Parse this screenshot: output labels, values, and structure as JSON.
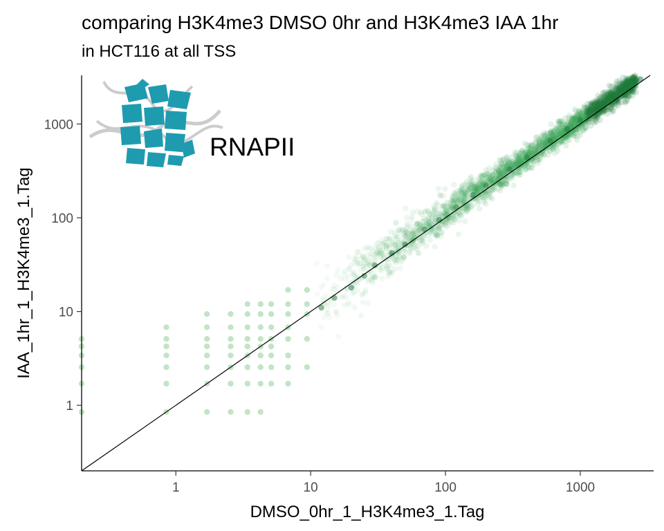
{
  "chart_data": {
    "type": "scatter",
    "title": "comparing H3K4me3 DMSO 0hr and H3K4me3 IAA 1hr",
    "subtitle": "in HCT116 at all TSS",
    "xlabel": "DMSO_0hr_1_H3K4me3_1.Tag",
    "ylabel": "IAA_1hr_1_H3K4me3_1.Tag",
    "x_scale": "log10",
    "y_scale": "log10",
    "xlim": [
      0.2,
      3500
    ],
    "ylim": [
      0.2,
      3300
    ],
    "x_ticks": [
      {
        "value": 1,
        "label": "1"
      },
      {
        "value": 10,
        "label": "10"
      },
      {
        "value": 100,
        "label": "100"
      },
      {
        "value": 1000,
        "label": "1000"
      }
    ],
    "y_ticks": [
      {
        "value": 1,
        "label": "1"
      },
      {
        "value": 10,
        "label": "10"
      },
      {
        "value": 100,
        "label": "100"
      },
      {
        "value": 1000,
        "label": "1000"
      }
    ],
    "grid": false,
    "reference_line": {
      "type": "identity",
      "slope": 1,
      "intercept": 0
    },
    "point_color": "#41a85c",
    "point_color_dark": "#1e7a3a",
    "point_color_light": "#8fcf96",
    "series": [
      {
        "values": [
          [
            0.85,
            0.85
          ],
          [
            0.85,
            1.7
          ],
          [
            0.85,
            2.55
          ],
          [
            0.85,
            3.4
          ],
          [
            0.85,
            4.25
          ],
          [
            0.85,
            5.1
          ],
          [
            0.85,
            6.8
          ],
          [
            1.7,
            0.85
          ],
          [
            1.7,
            1.7
          ],
          [
            1.7,
            2.55
          ],
          [
            1.7,
            3.4
          ],
          [
            1.7,
            4.25
          ],
          [
            1.7,
            5.1
          ],
          [
            1.7,
            6.8
          ],
          [
            1.7,
            9.4
          ],
          [
            2.55,
            0.85
          ],
          [
            2.55,
            1.7
          ],
          [
            2.55,
            2.55
          ],
          [
            2.55,
            3.4
          ],
          [
            2.55,
            4.25
          ],
          [
            2.55,
            5.1
          ],
          [
            2.55,
            6.8
          ],
          [
            2.55,
            9.4
          ],
          [
            3.4,
            0.85
          ],
          [
            3.4,
            1.7
          ],
          [
            3.4,
            2.55
          ],
          [
            3.4,
            3.4
          ],
          [
            3.4,
            4.25
          ],
          [
            3.4,
            5.1
          ],
          [
            3.4,
            6.8
          ],
          [
            3.4,
            9.4
          ],
          [
            3.4,
            12
          ],
          [
            4.25,
            0.85
          ],
          [
            4.25,
            1.7
          ],
          [
            4.25,
            2.55
          ],
          [
            4.25,
            3.4
          ],
          [
            4.25,
            4.25
          ],
          [
            4.25,
            5.1
          ],
          [
            4.25,
            6.8
          ],
          [
            4.25,
            9.4
          ],
          [
            4.25,
            12
          ],
          [
            5.1,
            1.7
          ],
          [
            5.1,
            2.55
          ],
          [
            5.1,
            3.4
          ],
          [
            5.1,
            4.25
          ],
          [
            5.1,
            5.1
          ],
          [
            5.1,
            6.8
          ],
          [
            5.1,
            9.4
          ],
          [
            5.1,
            12
          ],
          [
            6.8,
            1.7
          ],
          [
            6.8,
            2.55
          ],
          [
            6.8,
            3.4
          ],
          [
            6.8,
            5.1
          ],
          [
            6.8,
            6.8
          ],
          [
            6.8,
            9.4
          ],
          [
            6.8,
            12
          ],
          [
            6.8,
            17
          ],
          [
            9.4,
            2.55
          ],
          [
            9.4,
            5.1
          ],
          [
            9.4,
            9.4
          ],
          [
            9.4,
            12
          ],
          [
            9.4,
            17
          ],
          [
            0.2,
            0.85
          ],
          [
            0.2,
            1.7
          ],
          [
            0.2,
            2.55
          ],
          [
            0.2,
            3.4
          ],
          [
            0.2,
            4.25
          ],
          [
            0.2,
            5.1
          ],
          [
            12,
            11
          ],
          [
            15,
            14
          ],
          [
            20,
            18
          ],
          [
            25,
            24
          ],
          [
            30,
            31
          ],
          [
            40,
            42
          ],
          [
            50,
            52
          ],
          [
            70,
            75
          ],
          [
            90,
            95
          ],
          [
            120,
            130
          ],
          [
            160,
            175
          ],
          [
            200,
            220
          ],
          [
            300,
            330
          ],
          [
            400,
            440
          ],
          [
            600,
            660
          ],
          [
            800,
            880
          ],
          [
            1000,
            1100
          ],
          [
            1300,
            1450
          ],
          [
            1600,
            1800
          ],
          [
            2000,
            2200
          ],
          [
            2500,
            2700
          ],
          [
            2800,
            3000
          ]
        ]
      }
    ]
  },
  "logo": {
    "label": "RNAPII",
    "color": "#1f9bb0",
    "strand_color": "#cccccc"
  }
}
